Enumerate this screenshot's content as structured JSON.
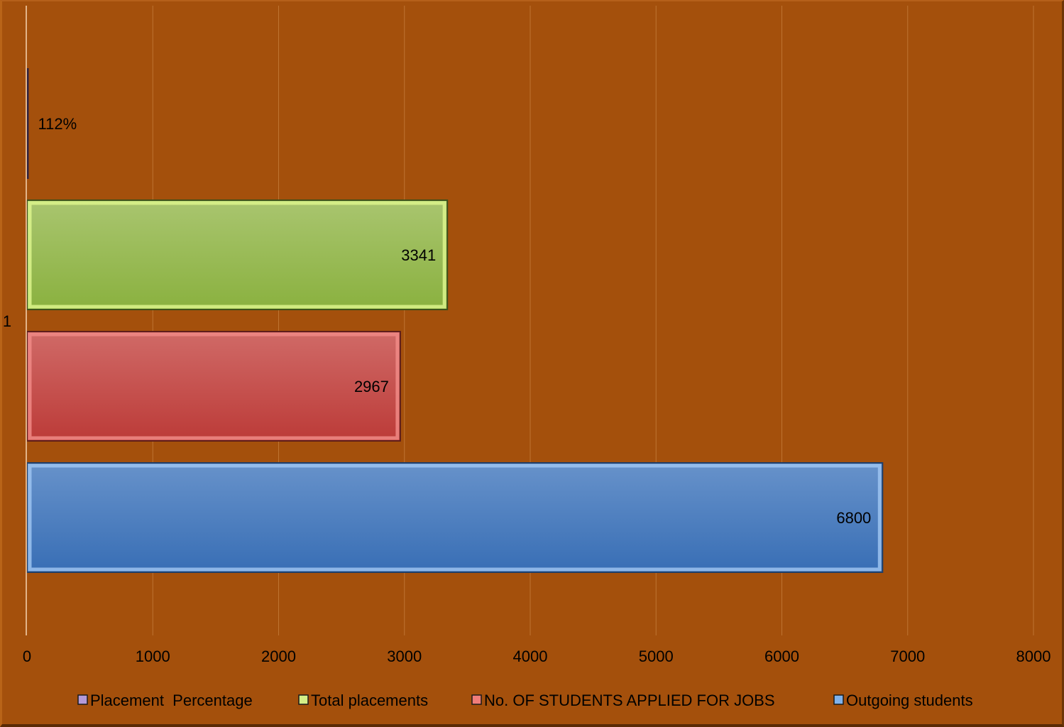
{
  "chart_data": {
    "type": "bar",
    "orientation": "horizontal",
    "categories": [
      "1"
    ],
    "series": [
      {
        "name": "Outgoing students",
        "values": [
          6800
        ],
        "label": "6800",
        "color": "#4a7ebb"
      },
      {
        "name": "No. OF STUDENTS APPLIED FOR JOBS",
        "values": [
          2967
        ],
        "label": "2967",
        "color": "#c0504d"
      },
      {
        "name": "Total placements",
        "values": [
          3341
        ],
        "label": "3341",
        "color": "#9bbb59"
      },
      {
        "name": "Placement  Percentage",
        "values": [
          1.12
        ],
        "label": "112%",
        "color": "#8064a2"
      }
    ],
    "legend_order": [
      "Placement  Percentage",
      "Total placements",
      "No. OF STUDENTS APPLIED FOR JOBS",
      "Outgoing students"
    ],
    "xlim": [
      0,
      8000
    ],
    "x_ticks": [
      0,
      1000,
      2000,
      3000,
      4000,
      5000,
      6000,
      7000,
      8000
    ],
    "x_tick_labels": [
      "0",
      "1000",
      "2000",
      "3000",
      "4000",
      "5000",
      "6000",
      "7000",
      "8000"
    ],
    "grid": true,
    "legend_position": "bottom",
    "background": "#a4500c",
    "title": "",
    "xlabel": "",
    "ylabel": ""
  }
}
